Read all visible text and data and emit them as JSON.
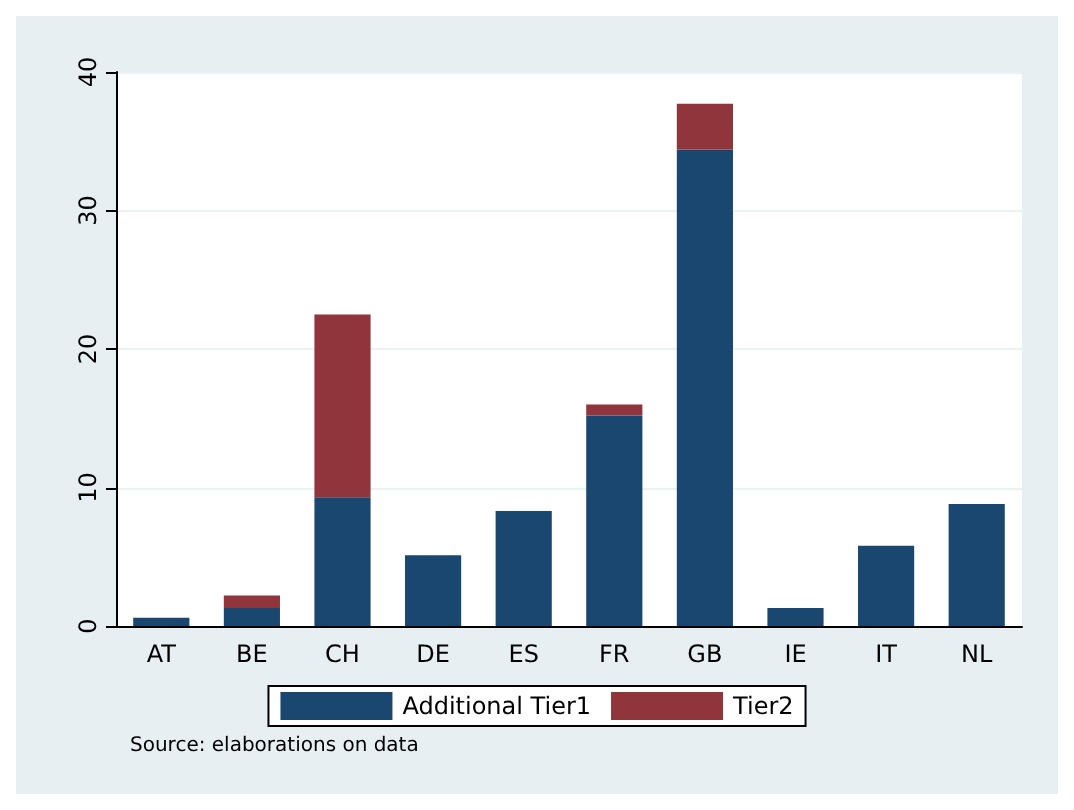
{
  "chart_data": {
    "type": "bar",
    "stacked": true,
    "categories": [
      "AT",
      "BE",
      "CH",
      "DE",
      "ES",
      "FR",
      "GB",
      "IE",
      "IT",
      "NL"
    ],
    "series": [
      {
        "name": "Additional Tier1",
        "color": "#1a476f",
        "values": [
          0.6,
          1.3,
          9.3,
          5.1,
          8.3,
          15.2,
          34.4,
          1.3,
          5.8,
          8.8
        ]
      },
      {
        "name": "Tier2",
        "color": "#90353b",
        "values": [
          null,
          0.9,
          13.2,
          null,
          null,
          0.8,
          3.3,
          null,
          null,
          null
        ]
      }
    ],
    "ylim": [
      0,
      40
    ],
    "yticks": [
      0,
      10,
      20,
      30,
      40
    ],
    "grid": "y",
    "legend": "bottom",
    "annotations": [
      "Source: elaborations on data"
    ]
  }
}
